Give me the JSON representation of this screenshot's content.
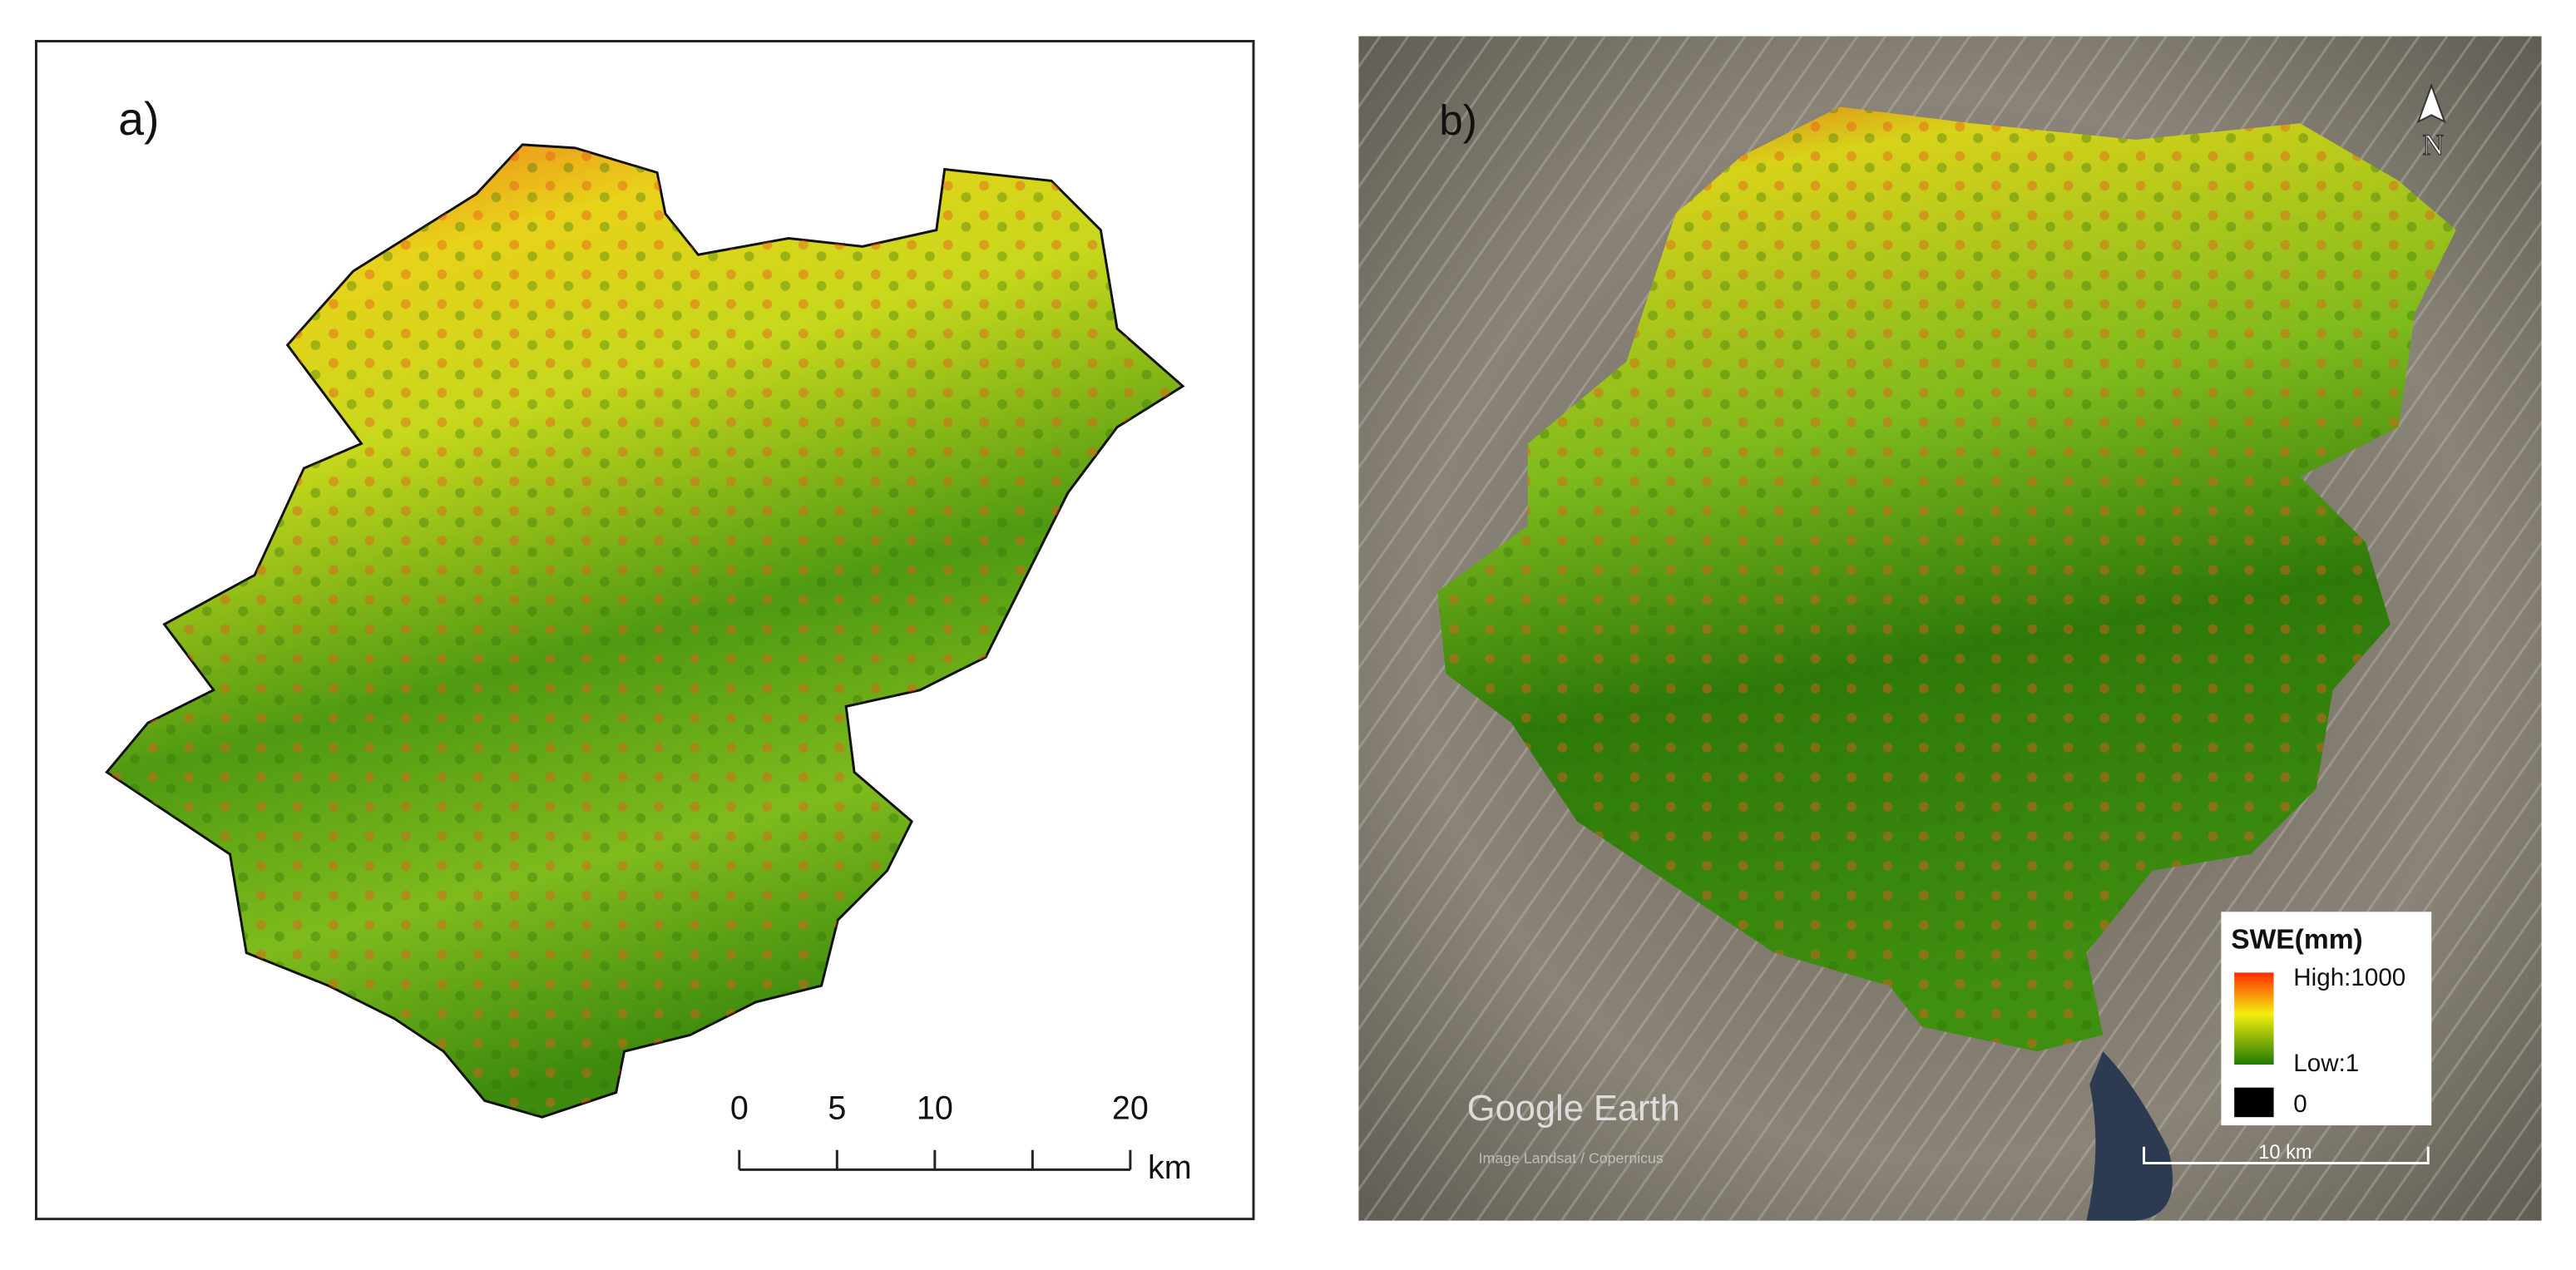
{
  "panel_a": {
    "label": "a)",
    "scale_bar": {
      "ticks": [
        0,
        5,
        10,
        20
      ],
      "minor_ticks": [
        15
      ],
      "range": [
        0,
        20
      ],
      "unit": "km"
    }
  },
  "panel_b": {
    "label": "b)",
    "north": "N",
    "legend": {
      "title": "SWE(mm)",
      "high": "High:1000",
      "low": "Low:1",
      "zero": "0"
    },
    "scale_bar": "10 km",
    "watermark": "Google Earth",
    "credit": "Image Landsat / Copernicus"
  }
}
